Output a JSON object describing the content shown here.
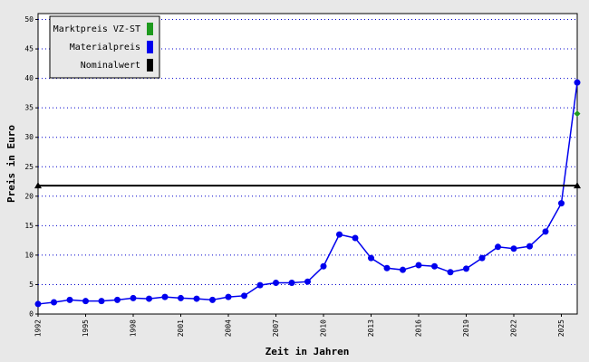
{
  "chart_data": {
    "type": "line",
    "xlabel": "Zeit in Jahren",
    "ylabel": "Preis in Euro",
    "xlim": [
      1992,
      2026
    ],
    "xticks": [
      1992,
      1995,
      1998,
      2001,
      2004,
      2007,
      2010,
      2013,
      2016,
      2019,
      2022,
      2025
    ],
    "ylim": [
      0,
      51
    ],
    "yticks": [
      0,
      5,
      10,
      15,
      20,
      25,
      30,
      35,
      40,
      45,
      50
    ],
    "grid": true,
    "legend": "upper left",
    "series": [
      {
        "name": "Marktpreis VZ-ST",
        "color": "#1e9a1e",
        "marker": "diamond",
        "x": [
          2026
        ],
        "values": [
          34.0
        ]
      },
      {
        "name": "Materialpreis",
        "color": "#0000ee",
        "marker": "circle",
        "x": [
          1992,
          1993,
          1994,
          1995,
          1996,
          1997,
          1998,
          1999,
          2000,
          2001,
          2002,
          2003,
          2004,
          2005,
          2006,
          2007,
          2008,
          2009,
          2010,
          2011,
          2012,
          2013,
          2014,
          2015,
          2016,
          2017,
          2018,
          2019,
          2020,
          2021,
          2022,
          2023,
          2024,
          2025,
          2026
        ],
        "values": [
          1.7,
          2.0,
          2.4,
          2.2,
          2.2,
          2.4,
          2.7,
          2.6,
          2.9,
          2.7,
          2.6,
          2.4,
          2.9,
          3.1,
          4.9,
          5.3,
          5.3,
          5.5,
          8.1,
          13.5,
          12.9,
          9.5,
          7.8,
          7.5,
          8.3,
          8.1,
          7.1,
          7.7,
          9.5,
          11.4,
          11.1,
          11.5,
          14.0,
          18.8,
          39.3
        ]
      },
      {
        "name": "Nominalwert",
        "color": "#000000",
        "marker": "triangle",
        "x": [
          1992,
          2026
        ],
        "values": [
          21.8,
          21.8
        ]
      }
    ]
  }
}
